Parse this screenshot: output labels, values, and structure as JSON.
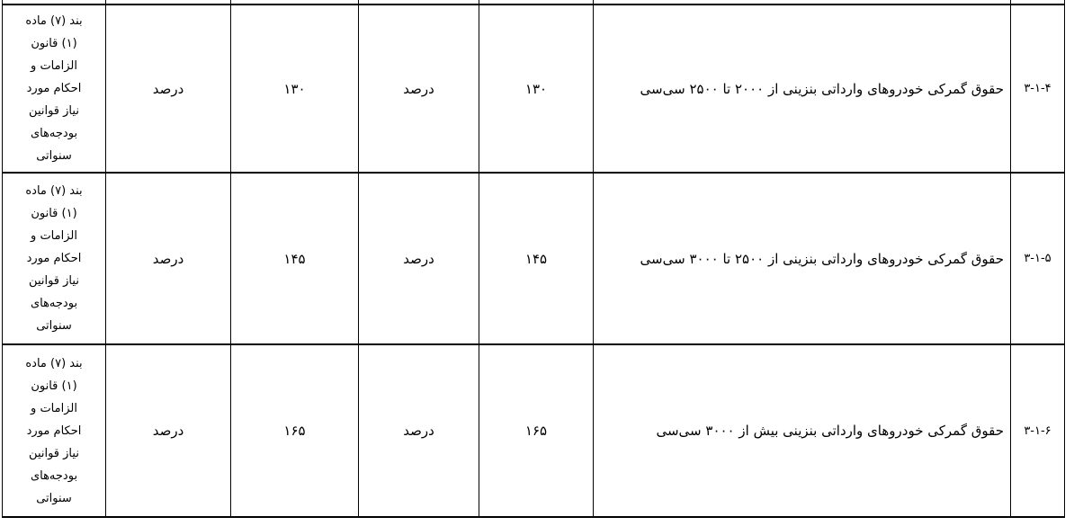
{
  "colors": {
    "background": "#ffffff",
    "text": "#000000",
    "border": "#000000"
  },
  "table": {
    "direction": "rtl",
    "visible_columns_note": "header row cropped out of view",
    "rows": [
      {
        "item_no": "۳-۱-۴",
        "description": "حقوق گمرکی خودروهای وارداتی بنزینی از ۲۰۰۰ تا ۲۵۰۰ سی‌سی",
        "value_1": "۱۳۰",
        "unit_1": "درصد",
        "value_2": "۱۳۰",
        "unit_2": "درصد",
        "legal_basis": "بند (۷) ماده\n(۱) قانون\nالزامات و\nاحکام مورد\nنیاز قوانین\nبودجه‌های\nسنواتی"
      },
      {
        "item_no": "۳-۱-۵",
        "description": "حقوق گمرکی خودروهای وارداتی بنزینی از ۲۵۰۰ تا ۳۰۰۰ سی‌سی",
        "value_1": "۱۴۵",
        "unit_1": "درصد",
        "value_2": "۱۴۵",
        "unit_2": "درصد",
        "legal_basis": "بند (۷) ماده\n(۱) قانون\nالزامات و\nاحکام مورد\nنیاز قوانین\nبودجه‌های\nسنواتی"
      },
      {
        "item_no": "۳-۱-۶",
        "description": "حقوق گمرکی خودروهای وارداتی بنزینی بیش از ۳۰۰۰ سی‌سی",
        "value_1": "۱۶۵",
        "unit_1": "درصد",
        "value_2": "۱۶۵",
        "unit_2": "درصد",
        "legal_basis": "بند (۷) ماده\n(۱) قانون\nالزامات و\nاحکام مورد\nنیاز قوانین\nبودجه‌های\nسنواتی"
      }
    ]
  }
}
